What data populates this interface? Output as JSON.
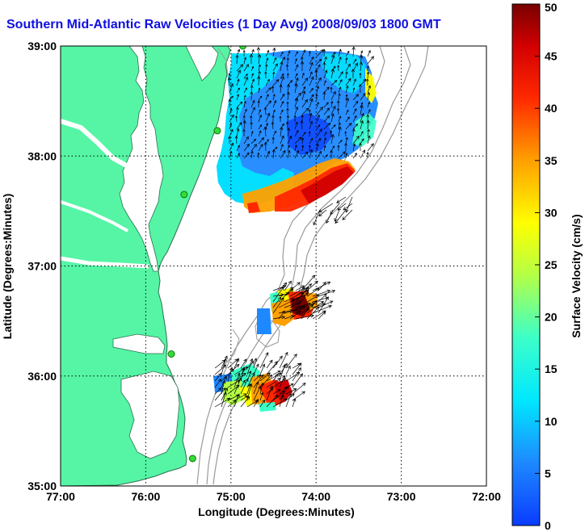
{
  "title": "Southern Mid-Atlantic Raw Velocities (1 Day Avg) 2008/09/03 1800 GMT",
  "x_axis": {
    "label": "Longitude (Degrees:Minutes)",
    "ticks": [
      "77:00",
      "76:00",
      "75:00",
      "74:00",
      "73:00",
      "72:00"
    ]
  },
  "y_axis": {
    "label": "Latitude (Degrees:Minutes)",
    "ticks": [
      "39:00",
      "38:00",
      "37:00",
      "36:00",
      "35:00"
    ]
  },
  "colorbar": {
    "label": "Surface Velocity (cm/s)",
    "ticks": [
      "50",
      "45",
      "40",
      "35",
      "30",
      "25",
      "20",
      "15",
      "10",
      "5",
      "0"
    ],
    "min": 0,
    "max": 50
  },
  "map_extent": {
    "lon_range": [
      -77,
      -72
    ],
    "lat_range": [
      35,
      39
    ]
  },
  "colors": {
    "land": "#55f5a5",
    "bathymetry": "#9a9a9a",
    "coastline": "#2f6f4f",
    "station": "#33dd33",
    "grid": "#000000",
    "title": "#1010e0"
  },
  "stations": [
    {
      "lon": -74.86,
      "lat": 39.0
    },
    {
      "lon": -75.16,
      "lat": 38.23
    },
    {
      "lon": -75.55,
      "lat": 37.65
    },
    {
      "lon": -75.7,
      "lat": 36.2
    },
    {
      "lon": -75.45,
      "lat": 35.25
    }
  ]
}
